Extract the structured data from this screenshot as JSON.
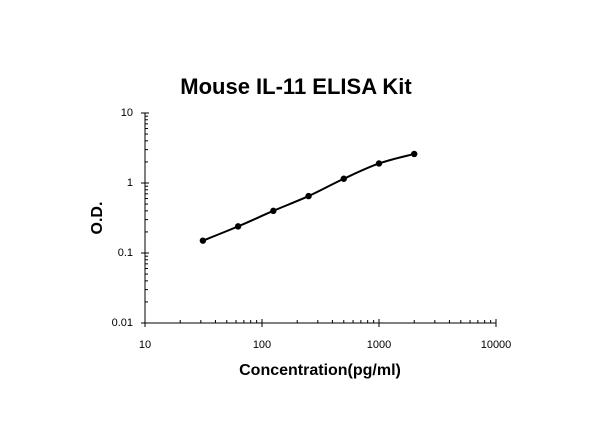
{
  "chart_data": {
    "type": "scatter",
    "title": "Mouse IL-11 ELISA Kit",
    "x_label": "Concentration(pg/ml)",
    "y_label": "O.D.",
    "x": [
      31.25,
      62.5,
      125,
      250,
      500,
      1000,
      2000
    ],
    "values": [
      0.15,
      0.24,
      0.4,
      0.65,
      1.15,
      1.9,
      2.6
    ],
    "color": "#000000",
    "xscale": "log",
    "yscale": "log",
    "xlim": [
      10,
      10000
    ],
    "xticks": [
      10,
      100,
      1000,
      10000
    ],
    "ylim": [
      0.01,
      10
    ],
    "yticks": [
      0.01,
      0.1,
      1,
      10
    ],
    "fit_line": true
  }
}
